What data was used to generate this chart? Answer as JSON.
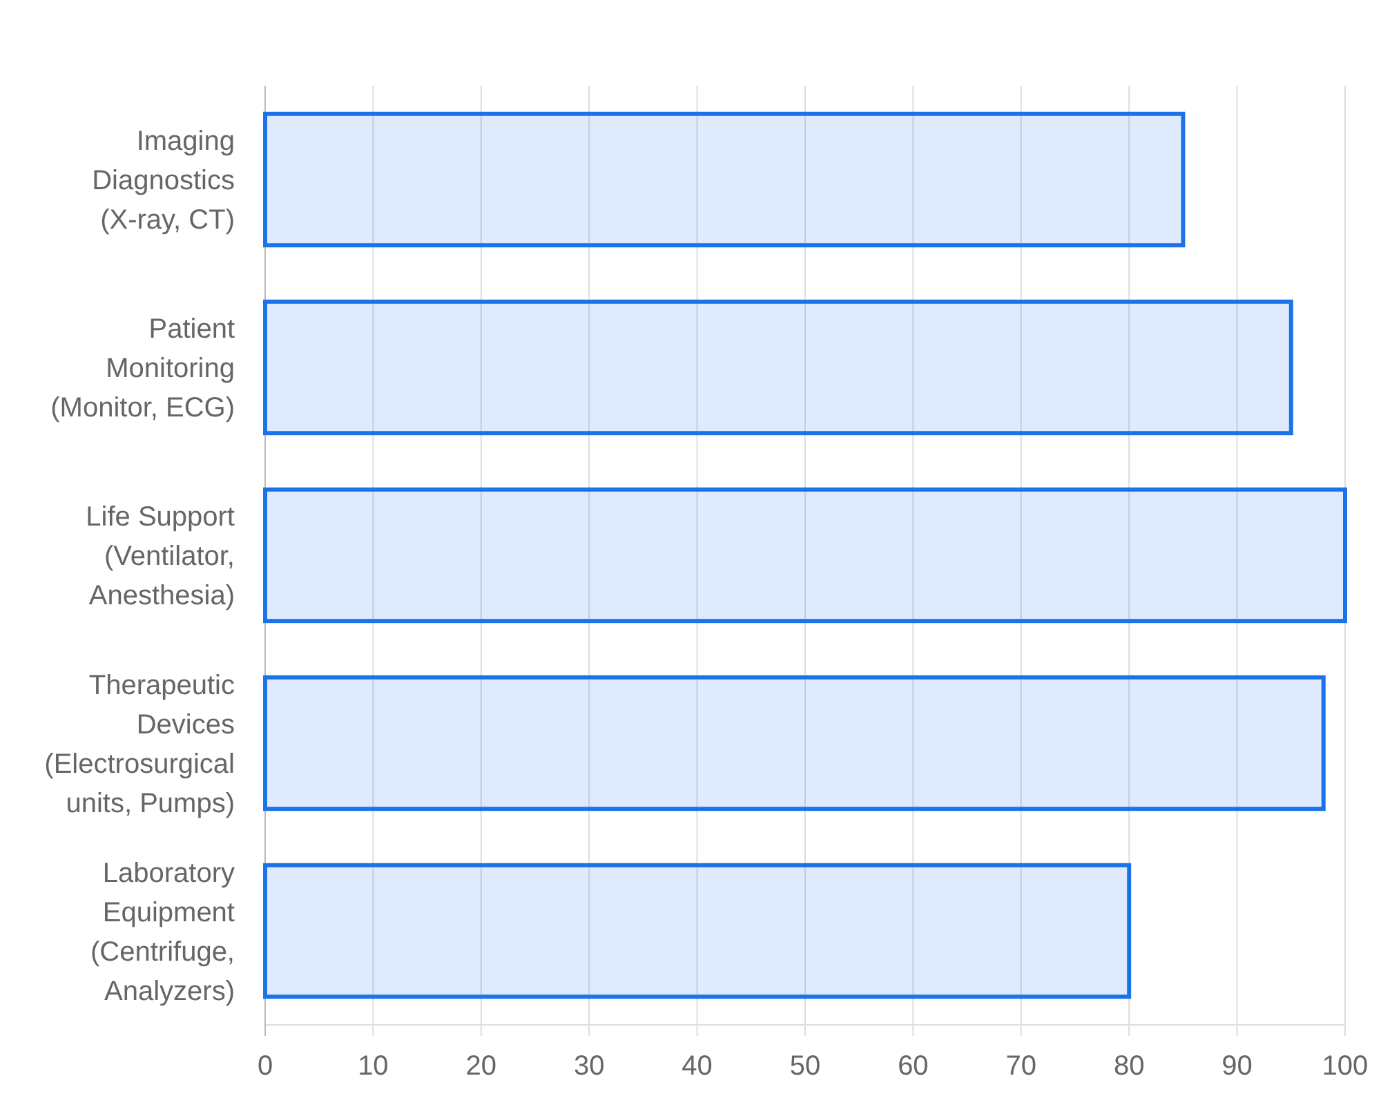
{
  "chart_data": {
    "type": "bar",
    "orientation": "horizontal",
    "categories": [
      "Imaging Diagnostics (X-ray, CT)",
      "Patient Monitoring (Monitor, ECG)",
      "Life Support (Ventilator, Anesthesia)",
      "Therapeutic Devices (Electrosurgical units, Pumps)",
      "Laboratory Equipment (Centrifuge, Analyzers)"
    ],
    "values": [
      85,
      95,
      100,
      98,
      80
    ],
    "color": "#1a73e8",
    "xlim": [
      0,
      100
    ],
    "xticks": [
      0,
      10,
      20,
      30,
      40,
      50,
      60,
      70,
      80,
      90,
      100
    ],
    "grid": "x"
  }
}
